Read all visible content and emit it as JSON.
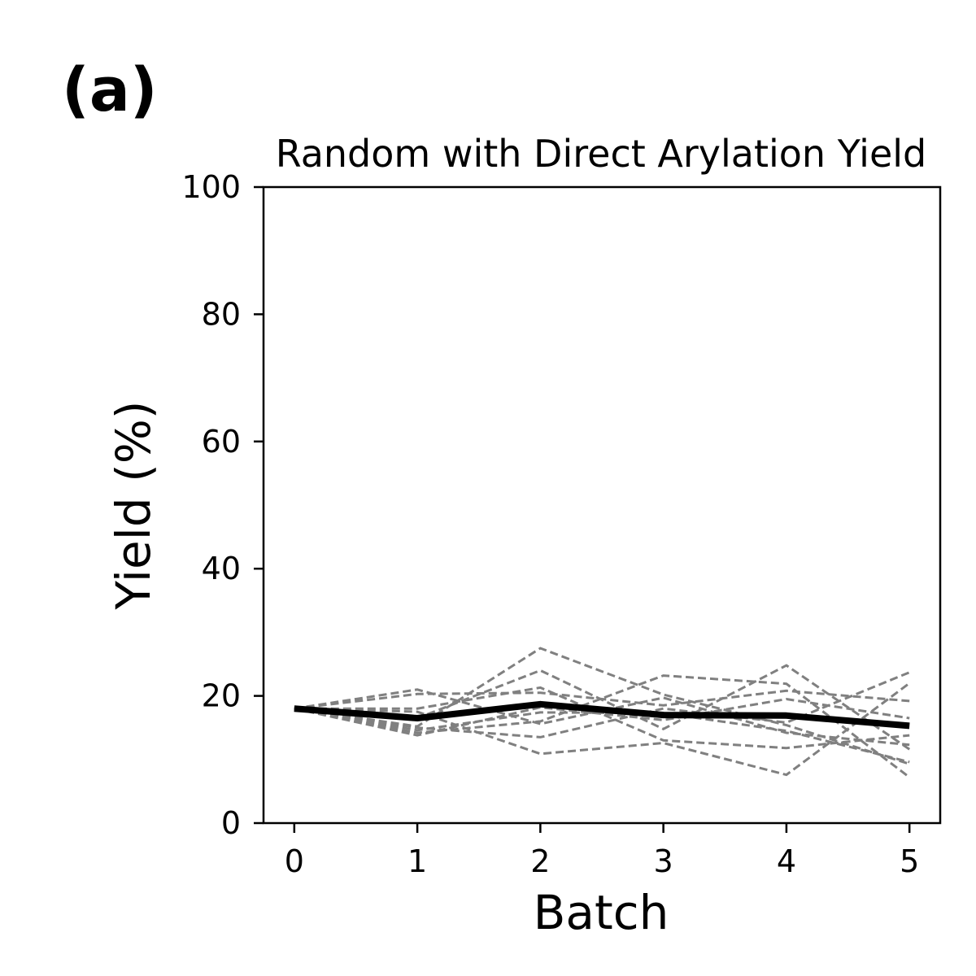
{
  "panel_label": "(a)",
  "chart_data": {
    "type": "line",
    "title": "Random with Direct Arylation Yield",
    "xlabel": "Batch",
    "ylabel": "Yield (%)",
    "x": [
      0,
      1,
      2,
      3,
      4,
      5
    ],
    "xticks": [
      "0",
      "1",
      "2",
      "3",
      "4",
      "5"
    ],
    "yticks": [
      "0",
      "20",
      "40",
      "60",
      "80",
      "100"
    ],
    "xlim": [
      -0.25,
      5.25
    ],
    "ylim": [
      0,
      100
    ],
    "grid": false,
    "mean_color": "#000000",
    "run_color": "#808080",
    "mean": [
      18.0,
      16.5,
      18.7,
      17.0,
      16.9,
      15.3
    ],
    "runs": [
      [
        18.0,
        20.3,
        20.5,
        18.5,
        20.8,
        19.2
      ],
      [
        18.0,
        15.2,
        27.5,
        20.2,
        15.4,
        9.3
      ],
      [
        18.0,
        14.2,
        16.0,
        23.2,
        21.9,
        7.2
      ],
      [
        18.0,
        16.5,
        24.0,
        14.8,
        24.8,
        11.6
      ],
      [
        18.0,
        13.8,
        18.2,
        16.2,
        19.5,
        16.5
      ],
      [
        18.0,
        17.5,
        10.9,
        12.6,
        7.6,
        22.0
      ],
      [
        18.0,
        21.0,
        15.6,
        19.7,
        14.2,
        12.3
      ],
      [
        18.0,
        15.0,
        13.5,
        18.0,
        15.8,
        23.7
      ],
      [
        18.0,
        18.0,
        21.3,
        13.0,
        11.8,
        13.8
      ],
      [
        18.0,
        14.6,
        17.4,
        17.3,
        14.5,
        9.6
      ]
    ]
  }
}
